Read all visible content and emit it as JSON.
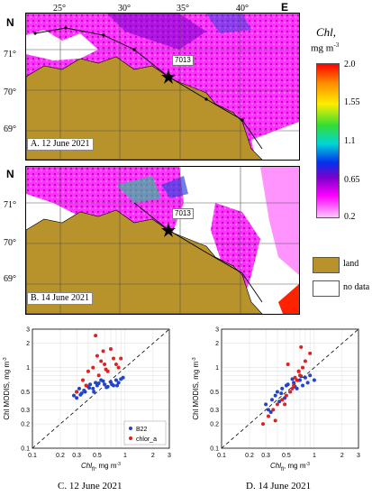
{
  "top_labels": {
    "lon": [
      "25°",
      "30°",
      "35°",
      "40°"
    ],
    "east": "E",
    "north_a": "N",
    "north_b": "N"
  },
  "lat_labels": [
    "71°",
    "70°",
    "69°"
  ],
  "panel_a": {
    "caption": "A. 12 June 2021",
    "station": "7013"
  },
  "panel_b": {
    "caption": "B. 14 June 2021",
    "station": "7013"
  },
  "colorbar": {
    "title": "Chl,",
    "units": "mg m",
    "units_exp": "-3",
    "ticks": [
      "2.0",
      "1.55",
      "1.1",
      "0.65",
      "0.2"
    ],
    "colors": [
      "#ffc8ff",
      "#ff00ff",
      "#7a00cc",
      "#0033ee",
      "#00d6d6",
      "#33dd33",
      "#ffee00",
      "#ff8800",
      "#ff0000"
    ]
  },
  "map_legend": {
    "land": "land",
    "no_data": "no data",
    "land_color": "#b8922a"
  },
  "plot_c": {
    "caption": "C. 12 June 2021"
  },
  "plot_d": {
    "caption": "D. 14 June 2021"
  },
  "chart_data": [
    {
      "type": "scatter",
      "xlabel": "Chl",
      "xlabel_sub": "fl",
      "xlabel_unit": ", mg m",
      "ylabel": "Chl MODIS, mg m",
      "xlim": [
        0.1,
        3
      ],
      "ylim": [
        0.1,
        3
      ],
      "log": true,
      "xticks": [
        "0.1",
        "0.2",
        "0.3",
        "0.5",
        "1",
        "2",
        "3"
      ],
      "yticks": [
        "0.1",
        "0.2",
        "0.3",
        "0.5",
        "1",
        "2",
        "3"
      ],
      "legend": [
        "B22",
        "chlor_a"
      ],
      "colors": [
        "#2244cc",
        "#dd2222"
      ],
      "series": [
        {
          "name": "B22",
          "x": [
            0.28,
            0.3,
            0.32,
            0.34,
            0.36,
            0.38,
            0.4,
            0.42,
            0.45,
            0.48,
            0.5,
            0.55,
            0.6,
            0.65,
            0.7,
            0.75,
            0.8,
            0.85,
            0.9,
            0.3,
            0.33,
            0.37,
            0.41,
            0.46,
            0.52,
            0.58,
            0.63,
            0.72,
            0.82,
            0.95
          ],
          "y": [
            0.45,
            0.5,
            0.55,
            0.48,
            0.52,
            0.6,
            0.58,
            0.62,
            0.55,
            0.65,
            0.6,
            0.7,
            0.62,
            0.58,
            0.66,
            0.6,
            0.7,
            0.65,
            0.72,
            0.42,
            0.46,
            0.5,
            0.56,
            0.5,
            0.64,
            0.68,
            0.57,
            0.62,
            0.6,
            0.75
          ]
        },
        {
          "name": "chlor_a",
          "x": [
            0.3,
            0.35,
            0.4,
            0.45,
            0.5,
            0.55,
            0.6,
            0.65,
            0.7,
            0.8,
            0.9,
            0.38,
            0.48,
            0.58,
            0.52,
            0.62,
            0.75,
            0.85
          ],
          "y": [
            0.5,
            0.7,
            0.9,
            1.0,
            1.4,
            1.2,
            1.1,
            0.9,
            1.7,
            1.1,
            1.3,
            0.6,
            2.5,
            1.6,
            0.8,
            0.95,
            1.3,
            1.0
          ]
        }
      ]
    },
    {
      "type": "scatter",
      "xlabel": "Chl",
      "xlabel_sub": "fl",
      "xlabel_unit": ", mg m",
      "ylabel": "Chl MODIS, mg m",
      "xlim": [
        0.1,
        3
      ],
      "ylim": [
        0.1,
        3
      ],
      "log": true,
      "xticks": [
        "0.1",
        "0.2",
        "0.3",
        "0.5",
        "1",
        "2",
        "3"
      ],
      "yticks": [
        "0.1",
        "0.2",
        "0.3",
        "0.5",
        "1",
        "2",
        "3"
      ],
      "colors": [
        "#2244cc",
        "#dd2222"
      ],
      "series": [
        {
          "name": "B22",
          "x": [
            0.3,
            0.32,
            0.35,
            0.38,
            0.4,
            0.42,
            0.45,
            0.48,
            0.5,
            0.55,
            0.6,
            0.65,
            0.7,
            0.75,
            0.8,
            0.85,
            0.9,
            1.0,
            0.34,
            0.44,
            0.52,
            0.62,
            0.72,
            0.58,
            0.68
          ],
          "y": [
            0.35,
            0.3,
            0.4,
            0.45,
            0.5,
            0.38,
            0.55,
            0.42,
            0.6,
            0.5,
            0.65,
            0.55,
            0.7,
            0.6,
            0.75,
            0.65,
            0.8,
            0.7,
            0.28,
            0.48,
            0.62,
            0.58,
            0.78,
            0.72,
            0.9
          ]
        },
        {
          "name": "chlor_a",
          "x": [
            0.28,
            0.32,
            0.36,
            0.4,
            0.45,
            0.5,
            0.55,
            0.6,
            0.65,
            0.7,
            0.75,
            0.8,
            0.9,
            0.38,
            0.48,
            0.58,
            0.68,
            0.52,
            0.62,
            0.72
          ],
          "y": [
            0.2,
            0.25,
            0.3,
            0.35,
            0.4,
            0.45,
            0.5,
            0.6,
            0.7,
            0.8,
            1.0,
            1.2,
            1.5,
            0.22,
            0.35,
            0.55,
            0.9,
            1.1,
            0.75,
            1.8
          ]
        }
      ]
    }
  ]
}
